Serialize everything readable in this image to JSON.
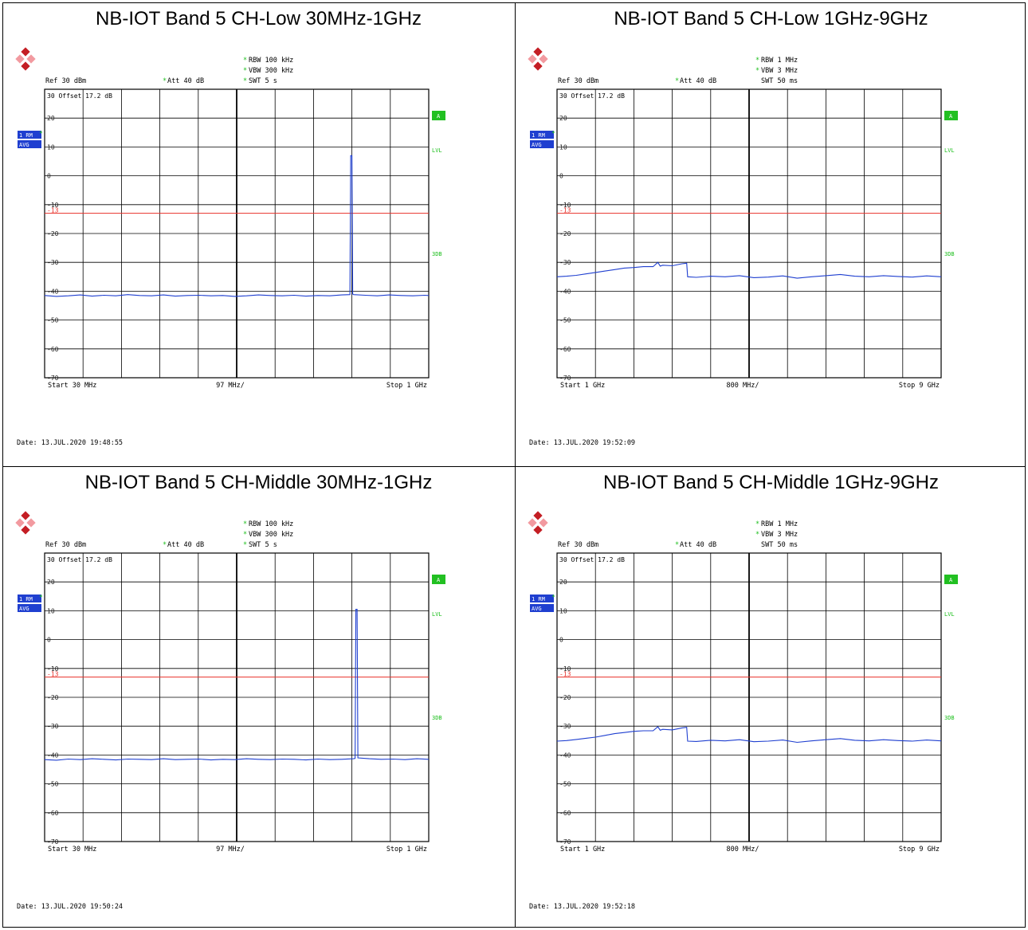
{
  "chart_data": [
    {
      "type": "line",
      "title": "NB-IOT Band 5 CH-Low 30MHz-1GHz",
      "ref": "Ref  30 dBm",
      "att": "Att  40 dB",
      "rbw": "RBW 100 kHz",
      "vbw": "VBW 300 kHz",
      "swt": "SWT 5 s",
      "offset_label": "30  Offset   17.2 dB",
      "marker_a": "A",
      "lvl": "LVL",
      "db3": "3DB",
      "trace_mode": "1 RM",
      "detector": "AVG",
      "start": "Start  30 MHz",
      "span_div": "97 MHz/",
      "stop": "Stop  1 GHz",
      "date": "Date: 13.JUL.2020  19:48:55",
      "y_ticks": [
        "20",
        "10",
        "0",
        "-10",
        "-20",
        "-30",
        "-40",
        "-50",
        "-60",
        "-70"
      ],
      "ylim": [
        -70,
        30
      ],
      "xlim": [
        30,
        1000
      ],
      "limit_line": {
        "value": -13,
        "label": "-13",
        "color": "#e8302a"
      },
      "trace_color": "#1f3fd0",
      "series": [
        {
          "x": [
            30,
            60,
            90,
            120,
            150,
            180,
            210,
            240,
            270,
            300,
            330,
            360,
            390,
            420,
            450,
            480,
            510,
            540,
            570,
            600,
            630,
            660,
            690,
            720,
            750,
            780,
            801,
            803,
            806,
            808,
            810,
            840,
            870,
            900,
            930,
            960,
            990,
            1000
          ],
          "y": [
            -41.5,
            -41.8,
            -41.6,
            -41.3,
            -41.7,
            -41.4,
            -41.6,
            -41.2,
            -41.5,
            -41.6,
            -41.3,
            -41.7,
            -41.5,
            -41.4,
            -41.6,
            -41.5,
            -41.8,
            -41.6,
            -41.3,
            -41.5,
            -41.6,
            -41.4,
            -41.7,
            -41.5,
            -41.6,
            -41.3,
            -41.2,
            7,
            7,
            -41,
            -41.2,
            -41.4,
            -41.6,
            -41.3,
            -41.5,
            -41.6,
            -41.4,
            -41.5
          ]
        }
      ]
    },
    {
      "type": "line",
      "title": "NB-IOT Band 5 CH-Low 1GHz-9GHz",
      "ref": "Ref  30 dBm",
      "att": "Att  40 dB",
      "rbw": "RBW 1 MHz",
      "vbw": "VBW 3 MHz",
      "swt": "SWT 50 ms",
      "offset_label": "30  Offset   17.2 dB",
      "marker_a": "A",
      "lvl": "LVL",
      "db3": "3DB",
      "trace_mode": "1 RM",
      "detector": "AVG",
      "start": "Start  1 GHz",
      "span_div": "800 MHz/",
      "stop": "Stop  9 GHz",
      "date": "Date: 13.JUL.2020  19:52:09",
      "y_ticks": [
        "20",
        "10",
        "0",
        "-10",
        "-20",
        "-30",
        "-40",
        "-50",
        "-60",
        "-70"
      ],
      "ylim": [
        -70,
        30
      ],
      "xlim": [
        1,
        9
      ],
      "limit_line": {
        "value": -13,
        "label": "-13",
        "color": "#e8302a"
      },
      "trace_color": "#1f3fd0",
      "series": [
        {
          "x": [
            1,
            1.2,
            1.4,
            1.6,
            1.8,
            2.0,
            2.2,
            2.4,
            2.6,
            2.8,
            3.0,
            3.1,
            3.15,
            3.2,
            3.4,
            3.6,
            3.7,
            3.72,
            3.9,
            4.2,
            4.5,
            4.8,
            5.1,
            5.4,
            5.7,
            6.0,
            6.3,
            6.6,
            6.9,
            7.2,
            7.5,
            7.8,
            8.1,
            8.4,
            8.7,
            9.0
          ],
          "y": [
            -35,
            -34.8,
            -34.5,
            -34,
            -33.5,
            -33,
            -32.5,
            -32,
            -31.8,
            -31.5,
            -31.5,
            -30,
            -31.3,
            -31,
            -31.2,
            -30.5,
            -30.3,
            -35,
            -35.2,
            -34.8,
            -35,
            -34.6,
            -35.3,
            -35.1,
            -34.7,
            -35.5,
            -35,
            -34.6,
            -34.2,
            -34.8,
            -35,
            -34.6,
            -34.9,
            -35.1,
            -34.7,
            -35
          ]
        }
      ]
    },
    {
      "type": "line",
      "title": "NB-IOT Band 5 CH-Middle 30MHz-1GHz",
      "ref": "Ref  30 dBm",
      "att": "Att  40 dB",
      "rbw": "RBW 100 kHz",
      "vbw": "VBW 300 kHz",
      "swt": "SWT 5 s",
      "offset_label": "30  Offset   17.2 dB",
      "marker_a": "A",
      "lvl": "LVL",
      "db3": "3DB",
      "trace_mode": "1 RM",
      "detector": "AVG",
      "start": "Start  30 MHz",
      "span_div": "97 MHz/",
      "stop": "Stop  1 GHz",
      "date": "Date: 13.JUL.2020  19:50:24",
      "y_ticks": [
        "20",
        "10",
        "0",
        "-10",
        "-20",
        "-30",
        "-40",
        "-50",
        "-60",
        "-70"
      ],
      "ylim": [
        -70,
        30
      ],
      "xlim": [
        30,
        1000
      ],
      "limit_line": {
        "value": -13,
        "label": "-13",
        "color": "#e8302a"
      },
      "trace_color": "#1f3fd0",
      "series": [
        {
          "x": [
            30,
            60,
            90,
            120,
            150,
            180,
            210,
            240,
            270,
            300,
            330,
            360,
            390,
            420,
            450,
            480,
            510,
            540,
            570,
            600,
            630,
            660,
            690,
            720,
            750,
            780,
            810,
            814,
            816,
            819,
            821,
            850,
            880,
            910,
            940,
            970,
            1000
          ],
          "y": [
            -41.6,
            -41.8,
            -41.4,
            -41.6,
            -41.3,
            -41.5,
            -41.7,
            -41.4,
            -41.5,
            -41.6,
            -41.3,
            -41.6,
            -41.5,
            -41.4,
            -41.7,
            -41.5,
            -41.6,
            -41.3,
            -41.5,
            -41.6,
            -41.4,
            -41.5,
            -41.7,
            -41.4,
            -41.6,
            -41.5,
            -41.3,
            -41.2,
            10.5,
            10.5,
            -41,
            -41.3,
            -41.5,
            -41.4,
            -41.6,
            -41.3,
            -41.5
          ]
        }
      ]
    },
    {
      "type": "line",
      "title": "NB-IOT Band 5 CH-Middle 1GHz-9GHz",
      "ref": "Ref  30 dBm",
      "att": "Att  40 dB",
      "rbw": "RBW 1 MHz",
      "vbw": "VBW 3 MHz",
      "swt": "SWT 50 ms",
      "offset_label": "30  Offset   17.2 dB",
      "marker_a": "A",
      "lvl": "LVL",
      "db3": "3DB",
      "trace_mode": "1 RM",
      "detector": "AVG",
      "start": "Start  1 GHz",
      "span_div": "800 MHz/",
      "stop": "Stop  9 GHz",
      "date": "Date: 13.JUL.2020  19:52:18",
      "y_ticks": [
        "20",
        "10",
        "0",
        "-10",
        "-20",
        "-30",
        "-40",
        "-50",
        "-60",
        "-70"
      ],
      "ylim": [
        -70,
        30
      ],
      "xlim": [
        1,
        9
      ],
      "limit_line": {
        "value": -13,
        "label": "-13",
        "color": "#e8302a"
      },
      "trace_color": "#1f3fd0",
      "series": [
        {
          "x": [
            1,
            1.2,
            1.4,
            1.6,
            1.8,
            2.0,
            2.2,
            2.4,
            2.6,
            2.8,
            3.0,
            3.1,
            3.15,
            3.2,
            3.4,
            3.6,
            3.7,
            3.72,
            3.9,
            4.2,
            4.5,
            4.8,
            5.1,
            5.4,
            5.7,
            6.0,
            6.3,
            6.6,
            6.9,
            7.2,
            7.5,
            7.8,
            8.1,
            8.4,
            8.7,
            9.0
          ],
          "y": [
            -35.2,
            -35,
            -34.6,
            -34.2,
            -33.8,
            -33.2,
            -32.6,
            -32.2,
            -31.8,
            -31.6,
            -31.6,
            -30.2,
            -31.4,
            -31.1,
            -31.3,
            -30.6,
            -30.4,
            -35.2,
            -35.3,
            -34.9,
            -35.1,
            -34.7,
            -35.4,
            -35.2,
            -34.8,
            -35.6,
            -35.1,
            -34.7,
            -34.3,
            -34.9,
            -35.1,
            -34.7,
            -35,
            -35.2,
            -34.8,
            -35.1
          ]
        }
      ]
    }
  ]
}
